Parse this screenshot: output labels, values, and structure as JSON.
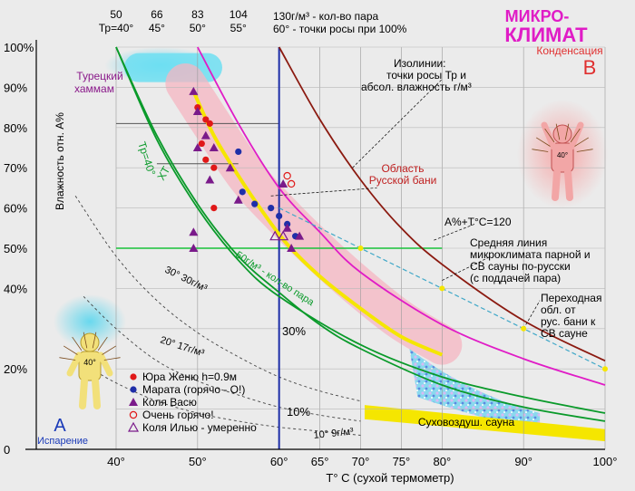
{
  "title": {
    "line1": "МИКРО-",
    "line2": "КЛИМАТ"
  },
  "chart_data": {
    "type": "line",
    "xlabel": "T° C (сухой термометр)",
    "ylabel": "Влажность отн. A%",
    "xlim": [
      32,
      100
    ],
    "ylim": [
      0,
      100
    ],
    "x_ticks": [
      "40°",
      "50°",
      "60°",
      "65°",
      "70°",
      "75°",
      "80°",
      "90°",
      "100°"
    ],
    "x_tick_values": [
      40,
      50,
      60,
      65,
      70,
      75,
      80,
      90,
      100
    ],
    "y_ticks": [
      "0",
      "20%",
      "40%",
      "50%",
      "60%",
      "70%",
      "80%",
      "90%",
      "100%"
    ],
    "y_tick_values": [
      0,
      20,
      40,
      50,
      60,
      70,
      80,
      90,
      100
    ],
    "top_axis": {
      "labels": [
        {
          "top": "50",
          "bottom": "Тр=40°",
          "x": 40
        },
        {
          "top": "66",
          "bottom": "45°",
          "x": 45
        },
        {
          "top": "83",
          "bottom": "50°",
          "x": 50
        },
        {
          "top": "104",
          "bottom": "55°",
          "x": 55
        }
      ],
      "legend_top": "130г/м³ - кол-во пара",
      "legend_bottom": "60° - точки росы при 100%",
      "legend_x": 60
    },
    "green_horizontal_y": 50,
    "blue_vertical_x": 60,
    "curves": [
      {
        "name": "Тр=40° ХТ",
        "color": "#0a9a2a",
        "points": [
          [
            40,
            100
          ],
          [
            45,
            78
          ],
          [
            50,
            61
          ],
          [
            55,
            48
          ],
          [
            60,
            39
          ],
          [
            65,
            31
          ],
          [
            70,
            25
          ],
          [
            80,
            16
          ],
          [
            90,
            10.5
          ],
          [
            100,
            7
          ]
        ]
      },
      {
        "name": "50г/м³ - кол-во пара",
        "color": "#0a9a2a",
        "points": [
          [
            40,
            100
          ],
          [
            45,
            77
          ],
          [
            50,
            60
          ],
          [
            55,
            47
          ],
          [
            60,
            38
          ],
          [
            70,
            26
          ],
          [
            80,
            18
          ],
          [
            90,
            13
          ],
          [
            100,
            9
          ]
        ]
      },
      {
        "name": "magenta",
        "color": "#e01cc6",
        "points": [
          [
            50,
            100
          ],
          [
            55,
            81
          ],
          [
            60,
            65
          ],
          [
            65,
            54
          ],
          [
            70,
            44
          ],
          [
            80,
            31
          ],
          [
            90,
            22.5
          ],
          [
            100,
            16
          ]
        ]
      },
      {
        "name": "brown",
        "color": "#8b1a10",
        "points": [
          [
            60,
            100
          ],
          [
            65,
            82
          ],
          [
            70,
            67
          ],
          [
            75,
            55
          ],
          [
            80,
            46
          ],
          [
            90,
            32
          ],
          [
            100,
            22
          ]
        ]
      },
      {
        "name": "Средняя линия микроклимата",
        "color": "#f5e600",
        "points": [
          [
            49.5,
            89
          ],
          [
            52,
            78
          ],
          [
            55,
            68
          ],
          [
            58,
            59
          ],
          [
            61,
            51
          ],
          [
            65,
            43
          ],
          [
            70,
            35
          ],
          [
            75,
            28
          ],
          [
            80,
            23.5
          ]
        ]
      },
      {
        "name": "A%+T°C=120",
        "color": "#41a8c8",
        "points": [
          [
            60,
            60
          ],
          [
            70,
            50
          ],
          [
            80,
            40
          ],
          [
            90,
            30
          ],
          [
            100,
            20
          ]
        ]
      }
    ],
    "dashed_isolines": [
      {
        "label": "30° 30г/м³",
        "points": [
          [
            35,
            63
          ],
          [
            40,
            48
          ],
          [
            45,
            37
          ],
          [
            50,
            29
          ],
          [
            55,
            23
          ],
          [
            60,
            18
          ],
          [
            65,
            14.5
          ],
          [
            70,
            12
          ]
        ]
      },
      {
        "label": "20° 17г/м³",
        "points": [
          [
            36,
            38
          ],
          [
            40,
            30
          ],
          [
            45,
            22
          ],
          [
            50,
            17
          ],
          [
            55,
            13.5
          ],
          [
            60,
            10.5
          ],
          [
            65,
            8.5
          ],
          [
            70,
            7
          ]
        ]
      },
      {
        "label": "10° 9г/м³",
        "points": [
          [
            37,
            20
          ],
          [
            40,
            16.5
          ],
          [
            45,
            12
          ],
          [
            50,
            9
          ],
          [
            55,
            7
          ],
          [
            60,
            5.5
          ],
          [
            65,
            4.5
          ],
          [
            70,
            3.5
          ]
        ]
      }
    ],
    "labels": {
      "turkish": "Турецкий хаммам",
      "condensation": "Конденсация",
      "b_letter": "B",
      "isolines": [
        "Изолинии:",
        "точки росы Тр и",
        "абсол. влажность г/м³"
      ],
      "russian_area": [
        "Область",
        "Русской бани"
      ],
      "a_plus_t": "A%+T°C=120",
      "middle_line": [
        "Средняя линия",
        "микроклимата парной и",
        "СВ сауны по-русски",
        "(с поддачей пара)"
      ],
      "transition": [
        "Переходная",
        "обл. от",
        "рус. бани к",
        "СВ сауне"
      ],
      "pct30": "30%",
      "pct10": "10%",
      "dry_sauna": "Суховоздуш. сауна",
      "evaporation": "Испарение",
      "a_letter": "A",
      "person_temp_left": "40°",
      "person_temp_right": "40°",
      "tr40": "Тр=40°",
      "xt": "ХТ",
      "g50": "50г/м³ - кол-во пара"
    },
    "legend": [
      {
        "label": "Юра Женю h=0.9м",
        "marker": "circle",
        "color": "#e01818"
      },
      {
        "label": "Марата (горячо - О!)",
        "marker": "circle",
        "color": "#1f2fa8"
      },
      {
        "label": "Коля Васю",
        "marker": "triangle",
        "color": "#7a1a8a"
      },
      {
        "label": "Очень горячо!",
        "marker": "open-circle",
        "color": "#e01818"
      },
      {
        "label": "Коля Илью - умеренно",
        "marker": "open-triangle",
        "color": "#7a1a8a"
      }
    ],
    "series": [
      {
        "name": "Юра Женю h=0.9м",
        "points": [
          [
            50,
            85
          ],
          [
            51,
            82
          ],
          [
            51.5,
            81
          ],
          [
            50.5,
            76
          ],
          [
            51,
            72
          ],
          [
            52,
            70
          ],
          [
            52,
            60
          ]
        ]
      },
      {
        "name": "Марата (горячо - О!)",
        "points": [
          [
            55,
            74
          ],
          [
            55.5,
            64
          ],
          [
            57,
            61
          ],
          [
            59,
            60
          ],
          [
            60,
            58
          ],
          [
            61,
            56
          ],
          [
            62,
            53
          ]
        ]
      },
      {
        "name": "Коля Васю",
        "points": [
          [
            49.5,
            89
          ],
          [
            50,
            84
          ],
          [
            51,
            78
          ],
          [
            50,
            75
          ],
          [
            52,
            75
          ],
          [
            54,
            70
          ],
          [
            51.5,
            67
          ],
          [
            55,
            62
          ],
          [
            60.5,
            66
          ],
          [
            49.5,
            54
          ],
          [
            49.5,
            50
          ],
          [
            61,
            55
          ],
          [
            62.5,
            53
          ],
          [
            61.5,
            50
          ]
        ]
      },
      {
        "name": "Очень горячо!",
        "points": [
          [
            61,
            68
          ],
          [
            61.5,
            66
          ]
        ]
      },
      {
        "name": "Коля Илью - умеренно",
        "points": [
          [
            59.5,
            53
          ],
          [
            60.5,
            53
          ]
        ]
      }
    ],
    "grid": true
  }
}
